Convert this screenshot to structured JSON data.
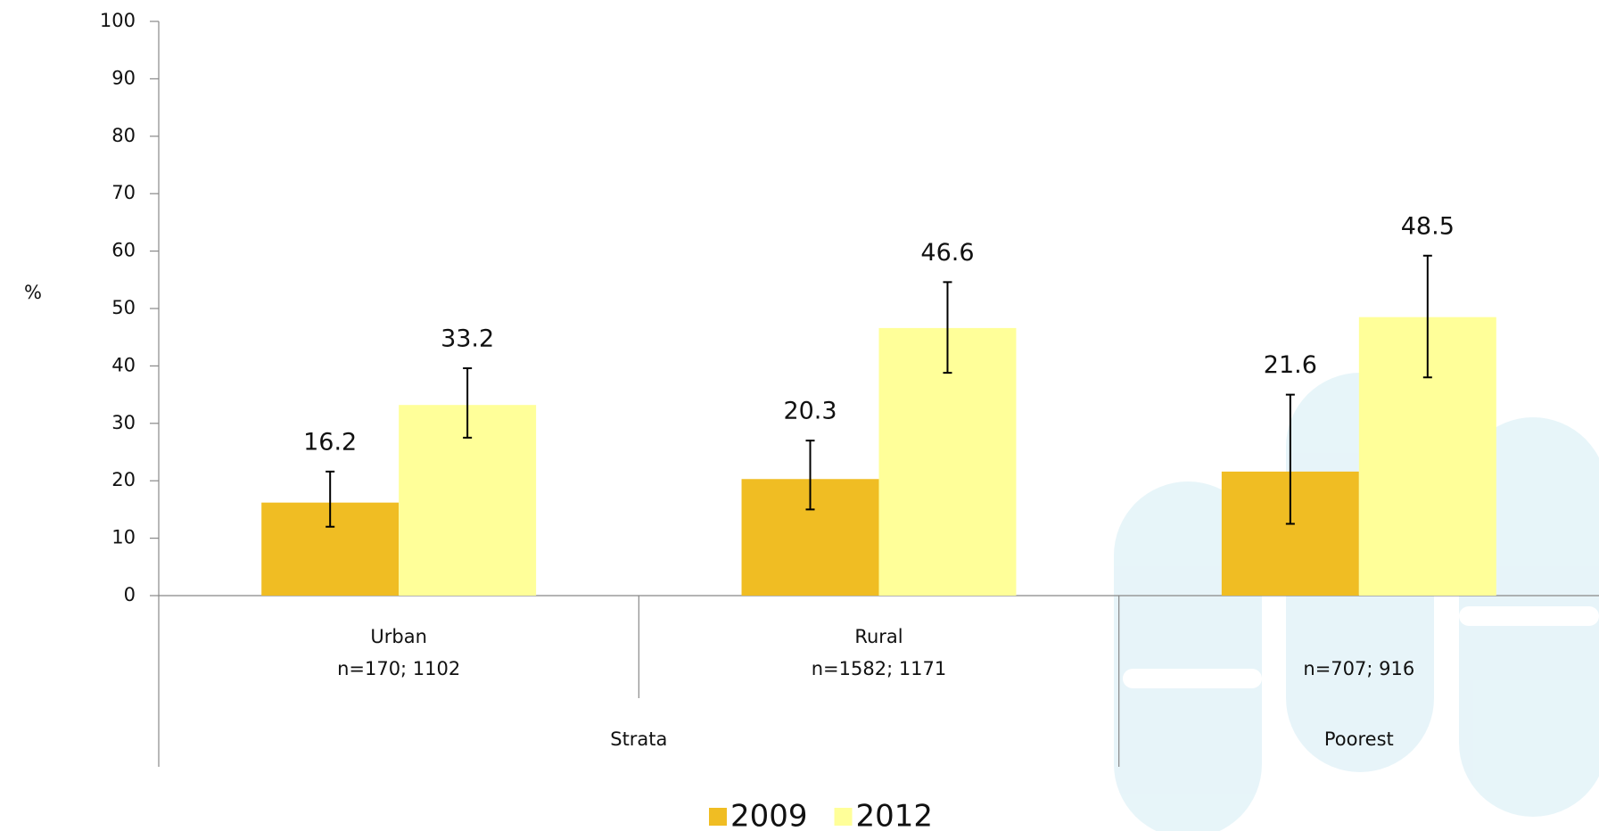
{
  "chart_data": {
    "type": "bar",
    "y_label": "%",
    "categories": [
      "Urban",
      "Rural",
      null
    ],
    "category_counts": [
      "n=170; 1102",
      "n=1582; 1171",
      "n=707; 916"
    ],
    "groups": [
      {
        "label": "Strata",
        "span": 2
      },
      {
        "label": "Poorest",
        "span": 1
      }
    ],
    "series": [
      {
        "name": "2009",
        "color": "#f0bd23",
        "values": [
          16.2,
          20.3,
          21.6
        ],
        "error_low": [
          12,
          15,
          12.5
        ],
        "error_high": [
          21.6,
          27,
          35
        ]
      },
      {
        "name": "2012",
        "color": "#ffff99",
        "values": [
          33.2,
          46.6,
          48.5
        ],
        "error_low": [
          27.5,
          38.8,
          38
        ],
        "error_high": [
          39.6,
          54.6,
          59.2
        ]
      }
    ],
    "ylim": [
      0,
      100
    ],
    "yticks": [
      0,
      10,
      20,
      30,
      40,
      50,
      60,
      70,
      80,
      90,
      100
    ],
    "legend": "bottom"
  }
}
